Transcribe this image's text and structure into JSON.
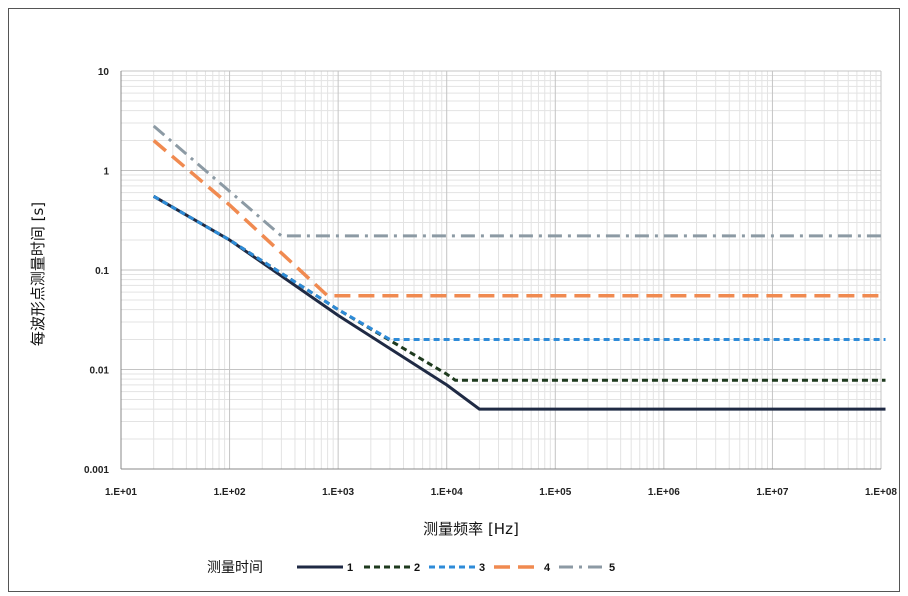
{
  "chart_data": {
    "type": "line",
    "title": "",
    "xlabel": "测量频率 [Hz]",
    "ylabel": "每波形点测量时间 [s]",
    "x_scale": "log",
    "y_scale": "log",
    "xlim": [
      10,
      100000000
    ],
    "ylim": [
      0.001,
      10
    ],
    "x_ticks": [
      "1.E+01",
      "1.E+02",
      "1.E+03",
      "1.E+04",
      "1.E+05",
      "1.E+06",
      "1.E+07",
      "1.E+08"
    ],
    "y_ticks": [
      "0.001",
      "0.01",
      "0.1",
      "1",
      "10"
    ],
    "grid": true,
    "legend_title": "测量时间",
    "legend_position": "bottom",
    "series": [
      {
        "name": "1",
        "color": "#1f2a44",
        "style": "solid",
        "x": [
          20,
          100,
          1000,
          10000,
          20000,
          110000000
        ],
        "y": [
          0.55,
          0.2,
          0.035,
          0.007,
          0.004,
          0.004
        ]
      },
      {
        "name": "2",
        "color": "#1e3a1e",
        "style": "dash",
        "x": [
          20,
          100,
          1000,
          10000,
          12000,
          110000000
        ],
        "y": [
          0.55,
          0.2,
          0.04,
          0.009,
          0.0078,
          0.0078
        ]
      },
      {
        "name": "3",
        "color": "#2e8bd8",
        "style": "dash",
        "x": [
          20,
          100,
          1000,
          3000,
          110000000
        ],
        "y": [
          0.55,
          0.2,
          0.04,
          0.02,
          0.02
        ]
      },
      {
        "name": "4",
        "color": "#f08a50",
        "style": "longdash",
        "x": [
          20,
          100,
          800,
          110000000
        ],
        "y": [
          2.0,
          0.45,
          0.055,
          0.055
        ]
      },
      {
        "name": "5",
        "color": "#8c9aa4",
        "style": "dashdot",
        "x": [
          20,
          300,
          110000000
        ],
        "y": [
          2.8,
          0.22,
          0.22
        ]
      }
    ]
  }
}
